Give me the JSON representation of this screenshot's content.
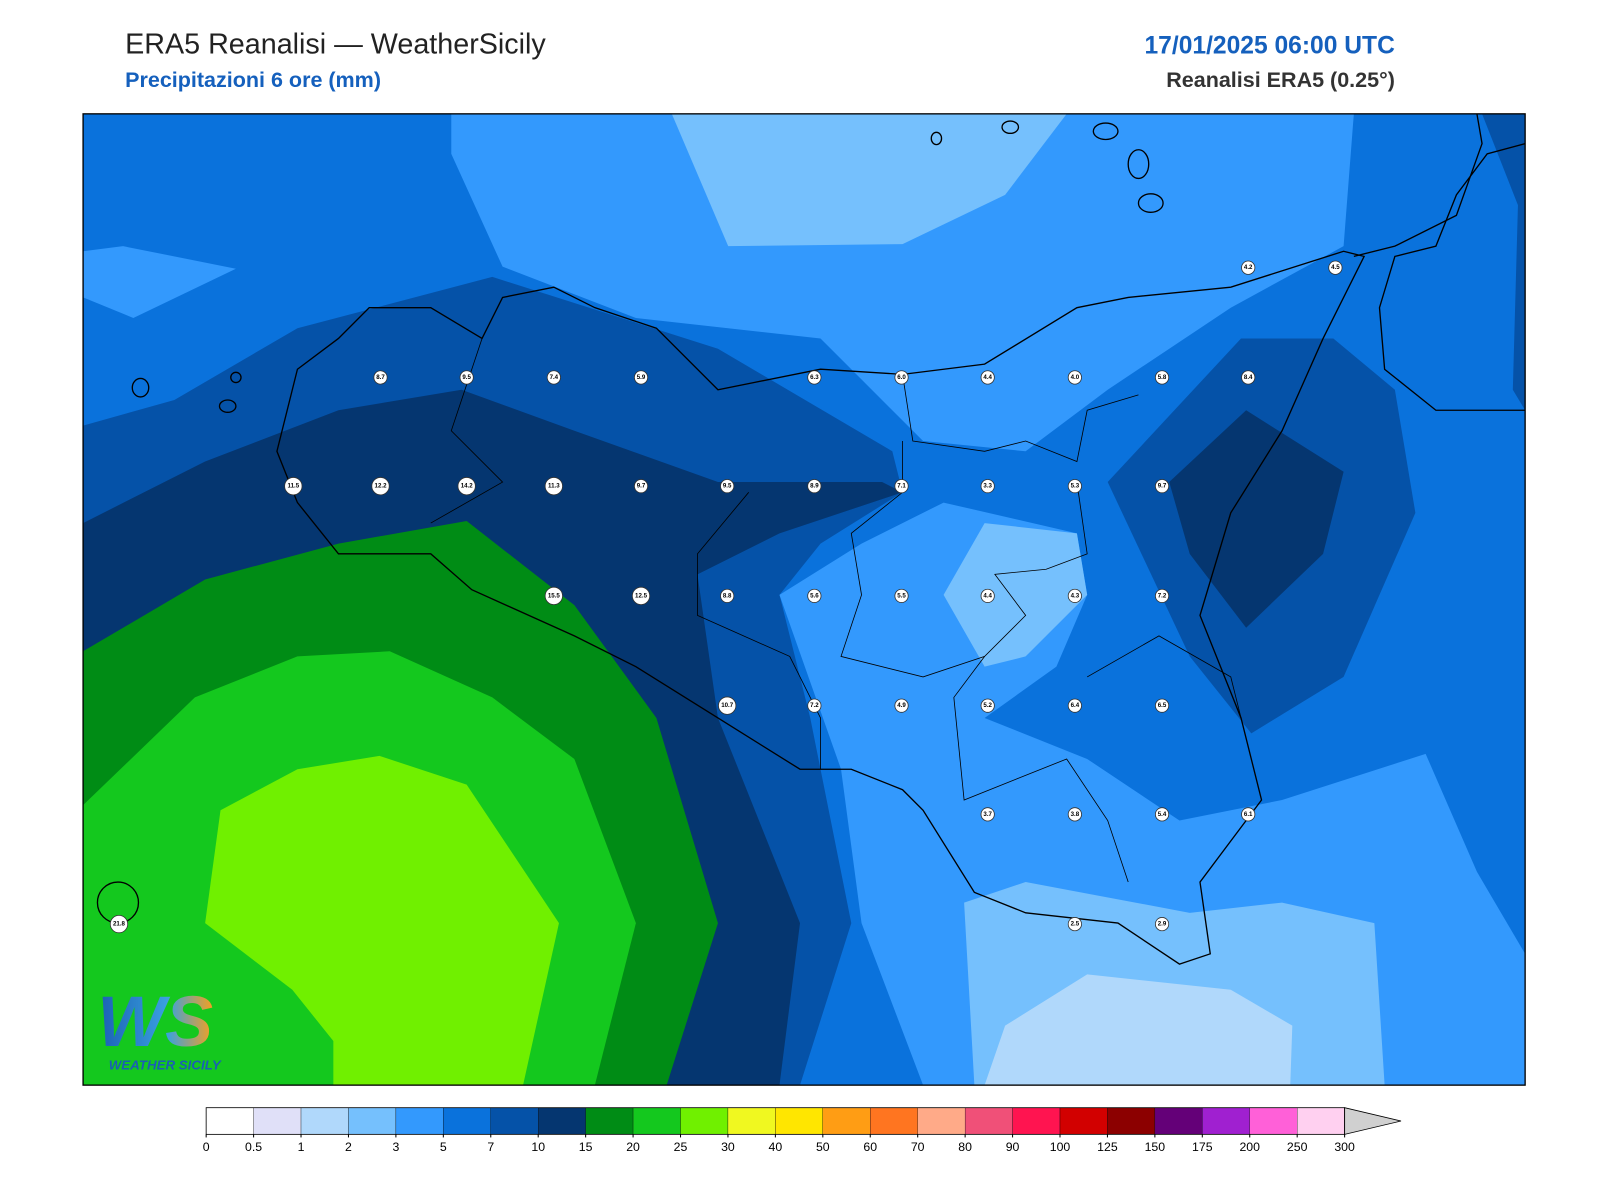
{
  "header": {
    "title": "ERA5 Reanalisi — WeatherSicily",
    "subtitle": "Precipitazioni 6 ore (mm)",
    "datetime": "17/01/2025 06:00 UTC",
    "source": "Reanalisi ERA5 (0.25°)"
  },
  "map": {
    "stations": [
      "4.2",
      "4.5",
      "8.7",
      "9.5",
      "7.4",
      "5.9",
      "6.3",
      "6.0",
      "4.4",
      "4.0",
      "5.8",
      "8.4",
      "11.5",
      "12.2",
      "14.2",
      "11.3",
      "9.7",
      "9.5",
      "8.9",
      "7.1",
      "3.3",
      "5.3",
      "9.7",
      "15.5",
      "12.5",
      "8.8",
      "5.6",
      "5.5",
      "4.4",
      "4.3",
      "7.2",
      "10.7",
      "7.2",
      "4.9",
      "5.2",
      "6.4",
      "6.5",
      "3.7",
      "3.8",
      "5.4",
      "6.1",
      "2.5",
      "2.9",
      "21.8"
    ]
  },
  "colorbar": {
    "bounds": [
      0,
      0.5,
      1,
      2,
      3,
      5,
      7,
      10,
      15,
      20,
      25,
      30,
      40,
      50,
      60,
      70,
      80,
      90,
      100,
      125,
      150,
      175,
      200,
      250,
      300
    ],
    "colors": [
      "#ffffff",
      "#e0e0f8",
      "#b0d8fb",
      "#75c0fd",
      "#3399fd",
      "#0a72dc",
      "#0552a8",
      "#053670",
      "#008c15",
      "#14c81e",
      "#70f000",
      "#f0f820",
      "#ffe600",
      "#ff9d14",
      "#ff7520",
      "#ffaa88",
      "#f05078",
      "#ff1450",
      "#d20000",
      "#8c0000",
      "#640078",
      "#a020d0",
      "#ff60d8",
      "#ffd0f0"
    ],
    "extend_color": "#d0d0d0"
  },
  "logo": {
    "mark": "WS",
    "text": "WEATHER SICILY"
  }
}
